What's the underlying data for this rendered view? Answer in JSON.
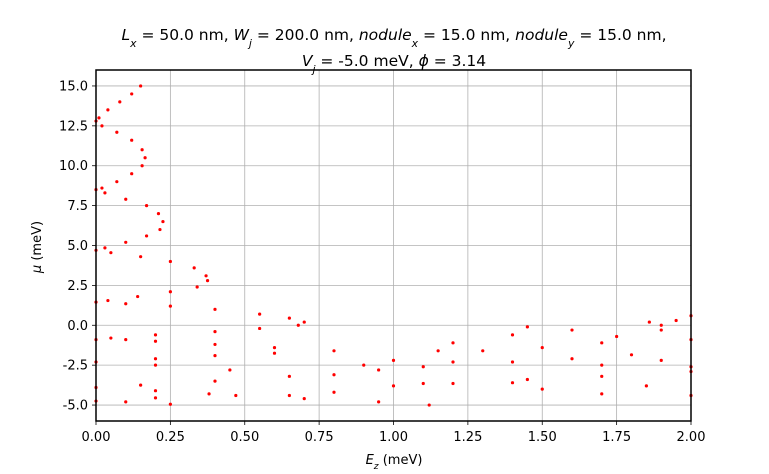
{
  "chart_data": {
    "type": "scatter",
    "title_lines": [
      [
        {
          "t": "L",
          "style": "italic"
        },
        {
          "t": "x",
          "style": "sub"
        },
        {
          "t": " = 50.0 nm, "
        },
        {
          "t": "W",
          "style": "italic"
        },
        {
          "t": "j",
          "style": "sub"
        },
        {
          "t": " = 200.0 nm, "
        },
        {
          "t": "nodule",
          "style": "italic"
        },
        {
          "t": "x",
          "style": "sub"
        },
        {
          "t": " = 15.0 nm, "
        },
        {
          "t": "nodule",
          "style": "italic"
        },
        {
          "t": "y",
          "style": "sub"
        },
        {
          "t": " = 15.0 nm,"
        }
      ],
      [
        {
          "t": "V",
          "style": "italic"
        },
        {
          "t": "j",
          "style": "sub"
        },
        {
          "t": " = -5.0 meV, "
        },
        {
          "t": "ϕ",
          "style": "italic"
        },
        {
          "t": " = 3.14"
        }
      ]
    ],
    "xlabel": [
      {
        "t": "E",
        "style": "italic"
      },
      {
        "t": "z",
        "style": "sub"
      },
      {
        "t": " (meV)"
      }
    ],
    "ylabel": [
      {
        "t": "μ",
        "style": "italic"
      },
      {
        "t": " (meV)"
      }
    ],
    "xlim": [
      0.0,
      2.0
    ],
    "ylim": [
      -6.0,
      16.0
    ],
    "x_ticks": [
      "0.00",
      "0.25",
      "0.50",
      "0.75",
      "1.00",
      "1.25",
      "1.50",
      "1.75",
      "2.00"
    ],
    "y_ticks": [
      "-5.0",
      "-2.5",
      "0.0",
      "2.5",
      "5.0",
      "7.5",
      "10.0",
      "12.5",
      "15.0"
    ],
    "grid": true,
    "legend": "none",
    "marker_color": "#ff0000",
    "series": [
      {
        "values": [
          [
            0.15,
            15.0
          ],
          [
            0.12,
            14.5
          ],
          [
            0.08,
            14.0
          ],
          [
            0.04,
            13.5
          ],
          [
            0.01,
            13.0
          ],
          [
            0.0,
            12.8
          ],
          [
            0.02,
            12.5
          ],
          [
            0.07,
            12.1
          ],
          [
            0.12,
            11.6
          ],
          [
            0.155,
            11.0
          ],
          [
            0.165,
            10.5
          ],
          [
            0.155,
            10.0
          ],
          [
            0.12,
            9.5
          ],
          [
            0.07,
            9.0
          ],
          [
            0.02,
            8.6
          ],
          [
            0.0,
            8.5
          ],
          [
            0.03,
            8.3
          ],
          [
            0.1,
            7.9
          ],
          [
            0.17,
            7.5
          ],
          [
            0.21,
            7.0
          ],
          [
            0.225,
            6.5
          ],
          [
            0.215,
            6.0
          ],
          [
            0.17,
            5.6
          ],
          [
            0.1,
            5.2
          ],
          [
            0.03,
            4.85
          ],
          [
            0.0,
            4.7
          ],
          [
            0.05,
            4.55
          ],
          [
            0.15,
            4.3
          ],
          [
            0.25,
            4.0
          ],
          [
            0.33,
            3.6
          ],
          [
            0.37,
            3.1
          ],
          [
            0.375,
            2.8
          ],
          [
            0.34,
            2.4
          ],
          [
            0.25,
            2.1
          ],
          [
            0.14,
            1.8
          ],
          [
            0.04,
            1.55
          ],
          [
            0.0,
            1.45
          ],
          [
            0.1,
            1.35
          ],
          [
            0.25,
            1.2
          ],
          [
            0.4,
            1.0
          ],
          [
            0.55,
            0.7
          ],
          [
            0.65,
            0.45
          ],
          [
            0.7,
            0.2
          ],
          [
            0.68,
            0.0
          ],
          [
            0.55,
            -0.2
          ],
          [
            0.4,
            -0.4
          ],
          [
            0.2,
            -0.6
          ],
          [
            0.05,
            -0.8
          ],
          [
            0.0,
            -0.9
          ],
          [
            0.2,
            -1.0
          ],
          [
            0.4,
            -1.2
          ],
          [
            0.6,
            -1.4
          ],
          [
            0.8,
            -1.6
          ],
          [
            0.6,
            -1.75
          ],
          [
            0.4,
            -1.9
          ],
          [
            0.2,
            -2.1
          ],
          [
            0.0,
            -2.3
          ],
          [
            0.2,
            -2.5
          ],
          [
            0.45,
            -2.8
          ],
          [
            0.65,
            -3.2
          ],
          [
            0.4,
            -3.5
          ],
          [
            0.15,
            -3.75
          ],
          [
            0.0,
            -3.9
          ],
          [
            0.2,
            -4.1
          ],
          [
            0.38,
            -4.3
          ],
          [
            0.2,
            -4.55
          ],
          [
            0.0,
            -4.75
          ],
          [
            0.1,
            -4.8
          ],
          [
            0.25,
            -4.95
          ],
          [
            0.47,
            -4.4
          ],
          [
            0.65,
            -4.4
          ],
          [
            0.8,
            -4.2
          ],
          [
            1.0,
            -3.8
          ],
          [
            1.1,
            -3.65
          ],
          [
            1.2,
            -3.65
          ],
          [
            1.4,
            -3.6
          ],
          [
            1.7,
            -3.2
          ],
          [
            2.0,
            -2.9
          ],
          [
            1.7,
            -2.5
          ],
          [
            1.4,
            -2.3
          ],
          [
            1.2,
            -2.3
          ],
          [
            1.0,
            -2.2
          ],
          [
            0.9,
            -2.5
          ],
          [
            0.8,
            -3.1
          ],
          [
            0.95,
            -2.8
          ],
          [
            1.1,
            -2.6
          ],
          [
            1.15,
            -1.6
          ],
          [
            1.3,
            -1.6
          ],
          [
            1.5,
            -1.4
          ],
          [
            1.7,
            -1.1
          ],
          [
            2.0,
            -0.9
          ],
          [
            1.75,
            -0.7
          ],
          [
            1.6,
            -0.3
          ],
          [
            1.45,
            -0.1
          ],
          [
            1.4,
            -0.6
          ],
          [
            1.2,
            -1.1
          ],
          [
            1.86,
            0.2
          ],
          [
            1.9,
            0.0
          ],
          [
            1.95,
            0.3
          ],
          [
            2.0,
            0.6
          ],
          [
            1.9,
            -0.3
          ],
          [
            1.8,
            -1.85
          ],
          [
            1.6,
            -2.1
          ],
          [
            1.9,
            -2.2
          ],
          [
            2.0,
            -2.6
          ],
          [
            1.85,
            -3.8
          ],
          [
            2.0,
            -4.4
          ],
          [
            1.7,
            -4.3
          ],
          [
            1.5,
            -4.0
          ],
          [
            1.12,
            -5.0
          ],
          [
            0.95,
            -4.8
          ],
          [
            0.7,
            -4.6
          ],
          [
            1.45,
            -3.4
          ],
          [
            0.1,
            -0.9
          ]
        ]
      }
    ]
  }
}
